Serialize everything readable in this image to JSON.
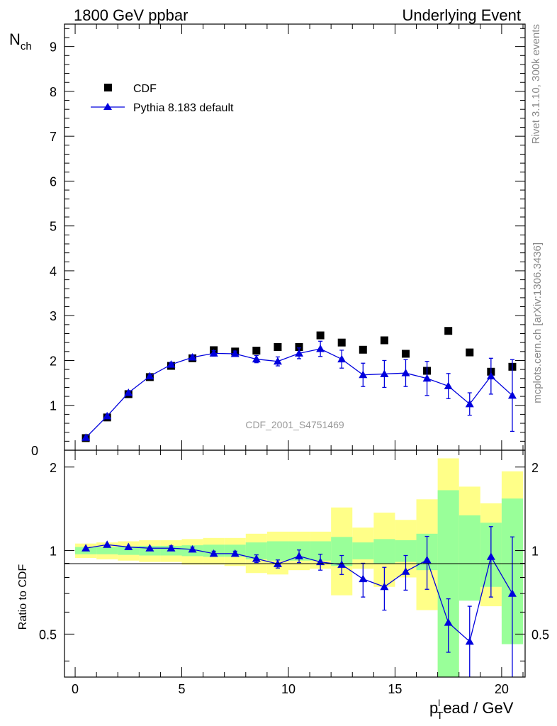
{
  "chart_data": [
    {
      "type": "scatter",
      "panel": "main",
      "title_left": "1800 GeV ppbar",
      "title_right": "Underlying Event",
      "ylabel": "N",
      "ylabel_sub": "ch",
      "xlim": [
        -0.5,
        21.1
      ],
      "ylim": [
        0,
        9.5
      ],
      "yticks": [
        1,
        2,
        3,
        4,
        5,
        6,
        7,
        8,
        9
      ],
      "ytick_labels": [
        "1",
        "2",
        "3",
        "4",
        "5",
        "6",
        "7",
        "8",
        "9"
      ],
      "ytick_zero_label": "0",
      "analysis_label": "CDF_2001_S4751469",
      "side_label_top": "Rivet 3.1.10,  300k events",
      "side_label_bottom": "mcplots.cern.ch [arXiv:1306.3436]",
      "legend_position": "top-left",
      "series": [
        {
          "name": "CDF",
          "marker": "square",
          "color": "#000000",
          "x": [
            0.5,
            1.5,
            2.5,
            3.5,
            4.5,
            5.5,
            6.5,
            7.5,
            8.5,
            9.5,
            10.5,
            11.5,
            12.5,
            13.5,
            14.5,
            15.5,
            16.5,
            17.5,
            18.5,
            19.5,
            20.5
          ],
          "y": [
            0.27,
            0.73,
            1.25,
            1.63,
            1.88,
            2.05,
            2.23,
            2.2,
            2.22,
            2.3,
            2.3,
            2.56,
            2.4,
            2.24,
            2.45,
            2.15,
            1.77,
            2.66,
            2.18,
            1.75,
            1.86
          ]
        },
        {
          "name": "Pythia 8.183 default",
          "marker": "triangle",
          "color": "#0000dd",
          "x": [
            0.5,
            1.5,
            2.5,
            3.5,
            4.5,
            5.5,
            6.5,
            7.5,
            8.5,
            9.5,
            10.5,
            11.5,
            12.5,
            13.5,
            14.5,
            15.5,
            16.5,
            17.5,
            18.5,
            19.5,
            20.5
          ],
          "y": [
            0.28,
            0.76,
            1.28,
            1.65,
            1.91,
            2.07,
            2.16,
            2.15,
            2.03,
            1.98,
            2.16,
            2.26,
            2.03,
            1.68,
            1.7,
            1.72,
            1.6,
            1.43,
            1.03,
            1.65,
            1.22
          ],
          "err": [
            0.02,
            0.03,
            0.04,
            0.04,
            0.05,
            0.05,
            0.06,
            0.06,
            0.08,
            0.1,
            0.12,
            0.17,
            0.2,
            0.26,
            0.3,
            0.3,
            0.38,
            0.28,
            0.25,
            0.4,
            0.8
          ]
        }
      ]
    },
    {
      "type": "scatter",
      "panel": "ratio",
      "xlabel": "p",
      "xlabel_sub": "T",
      "xlabel_sup": "l",
      "xlabel_rest": "ead / GeV",
      "ylabel": "Ratio to CDF",
      "xlim": [
        -0.5,
        21.1
      ],
      "ylim": [
        0.35,
        2.3
      ],
      "xticks": [
        0,
        5,
        10,
        15,
        20
      ],
      "xtick_labels": [
        "0",
        "5",
        "10",
        "15",
        "20"
      ],
      "yticks": [
        0.5,
        1,
        2
      ],
      "ytick_labels": [
        "0.5",
        "1",
        "2"
      ],
      "bins": [
        0,
        1,
        2,
        3,
        4,
        5,
        6,
        7,
        8,
        9,
        10,
        11,
        12,
        13,
        14,
        15,
        16,
        17,
        18,
        19,
        20,
        21
      ],
      "band_colors": {
        "stat": "#99ff99",
        "total": "#ffff88"
      },
      "stat_band": {
        "up": [
          1.03,
          1.03,
          1.035,
          1.04,
          1.04,
          1.045,
          1.05,
          1.05,
          1.07,
          1.08,
          1.08,
          1.08,
          1.12,
          1.07,
          1.1,
          1.09,
          1.15,
          1.65,
          1.34,
          1.26,
          1.54
        ],
        "down": [
          0.97,
          0.97,
          0.965,
          0.96,
          0.96,
          0.955,
          0.95,
          0.95,
          0.93,
          0.92,
          0.92,
          0.92,
          0.88,
          0.93,
          0.9,
          0.91,
          0.85,
          0.35,
          0.66,
          0.74,
          0.46
        ]
      },
      "total_band": {
        "up": [
          1.06,
          1.07,
          1.08,
          1.09,
          1.09,
          1.1,
          1.11,
          1.11,
          1.15,
          1.17,
          1.17,
          1.17,
          1.43,
          1.21,
          1.37,
          1.29,
          1.53,
          2.15,
          1.7,
          1.48,
          1.93
        ],
        "down": [
          0.94,
          0.93,
          0.92,
          0.91,
          0.91,
          0.89,
          0.89,
          0.88,
          0.83,
          0.82,
          0.85,
          0.86,
          0.69,
          0.86,
          0.74,
          0.8,
          0.61,
          0.35,
          0.73,
          0.63,
          0.57
        ]
      },
      "series": [
        {
          "name": "Pythia 8.183 default",
          "color": "#0000dd",
          "x": [
            0.5,
            1.5,
            2.5,
            3.5,
            4.5,
            5.5,
            6.5,
            7.5,
            8.5,
            9.5,
            10.5,
            11.5,
            12.5,
            13.5,
            14.5,
            15.5,
            16.5,
            17.5,
            18.5,
            19.5,
            20.5
          ],
          "y": [
            1.02,
            1.05,
            1.03,
            1.02,
            1.02,
            1.01,
            0.975,
            0.975,
            0.935,
            0.895,
            0.955,
            0.91,
            0.89,
            0.79,
            0.74,
            0.84,
            0.925,
            0.55,
            0.47,
            0.95,
            0.7
          ],
          "err": [
            0.01,
            0.01,
            0.015,
            0.015,
            0.02,
            0.02,
            0.02,
            0.02,
            0.03,
            0.03,
            0.05,
            0.06,
            0.07,
            0.11,
            0.13,
            0.12,
            0.2,
            0.12,
            0.16,
            0.27,
            0.42
          ]
        }
      ]
    }
  ]
}
